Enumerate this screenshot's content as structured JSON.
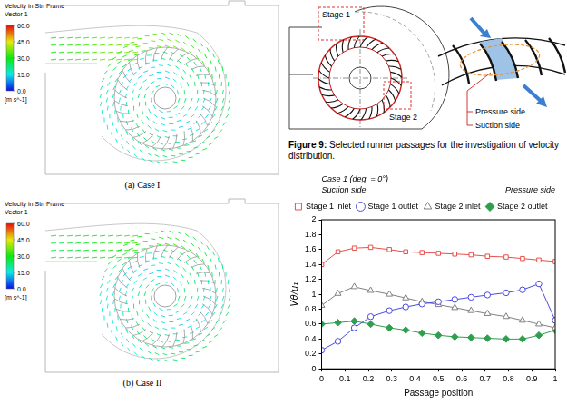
{
  "panels": [
    {
      "caption": "(a) Case I",
      "colorbar": {
        "title": "Velocity in Stn Frame",
        "subtitle": "Vector 1",
        "range": [
          0,
          60
        ],
        "ticks": [
          {
            "value": 0,
            "label": "0.0"
          },
          {
            "value": 15,
            "label": "15.0"
          },
          {
            "value": 30,
            "label": "30.0"
          },
          {
            "value": 45,
            "label": "45.0"
          },
          {
            "value": 60,
            "label": "60.0"
          }
        ],
        "unit": "[m s^-1]"
      }
    },
    {
      "caption": "(b) Case II",
      "colorbar": {
        "title": "Velocity in Stn Frame",
        "subtitle": "Vector 1",
        "range": [
          0,
          60
        ],
        "ticks": [
          {
            "value": 0,
            "label": "0.0"
          },
          {
            "value": 15,
            "label": "15.0"
          },
          {
            "value": 30,
            "label": "30.0"
          },
          {
            "value": 45,
            "label": "45.0"
          },
          {
            "value": 60,
            "label": "60.0"
          }
        ],
        "unit": "[m s^-1]"
      }
    }
  ],
  "figure": {
    "stage_labels": [
      "Stage 1",
      "Stage 2"
    ],
    "side_labels": [
      "Pressure side",
      "Suction side"
    ],
    "label": "Figure 9:",
    "caption": "Selected runner passages for the investigation of velocity distribution."
  },
  "chart_data": {
    "type": "line",
    "title": "Case 1 (deg. = 0°)",
    "annotations": [
      "Suction side",
      "Pressure side"
    ],
    "x_label": "Passage position",
    "y_label": "Vθ/u₁",
    "x": [
      0,
      0.07,
      0.14,
      0.21,
      0.29,
      0.36,
      0.43,
      0.5,
      0.57,
      0.64,
      0.71,
      0.79,
      0.86,
      0.93,
      1
    ],
    "xlim": [
      0,
      1
    ],
    "xticks": [
      0,
      0.1,
      0.2,
      0.3,
      0.4,
      0.5,
      0.6,
      0.7,
      0.8,
      0.9,
      1
    ],
    "ylim": [
      0,
      2
    ],
    "yticks": [
      0,
      0.2,
      0.4,
      0.6,
      0.8,
      1,
      1.2,
      1.4,
      1.6,
      1.8,
      2
    ],
    "grid": false,
    "legend": "top",
    "series": [
      {
        "name": "Stage 1 inlet",
        "color": "#e8504a",
        "marker": "square-open",
        "values": [
          1.4,
          1.57,
          1.62,
          1.63,
          1.6,
          1.57,
          1.56,
          1.55,
          1.54,
          1.53,
          1.51,
          1.5,
          1.48,
          1.46,
          1.44
        ]
      },
      {
        "name": "Stage 1 outlet",
        "color": "#4a4ae0",
        "marker": "circle-open",
        "values": [
          0.25,
          0.37,
          0.55,
          0.7,
          0.78,
          0.83,
          0.87,
          0.9,
          0.93,
          0.96,
          0.99,
          1.02,
          1.06,
          1.14,
          0.65
        ]
      },
      {
        "name": "Stage 2 inlet",
        "color": "#808080",
        "marker": "triangle-open",
        "values": [
          0.85,
          1.01,
          1.1,
          1.05,
          1.0,
          0.95,
          0.9,
          0.86,
          0.82,
          0.78,
          0.74,
          0.7,
          0.65,
          0.6,
          0.55
        ]
      },
      {
        "name": "Stage 2 outlet",
        "color": "#2e9e4f",
        "marker": "diamond",
        "values": [
          0.6,
          0.62,
          0.64,
          0.6,
          0.55,
          0.52,
          0.48,
          0.45,
          0.43,
          0.42,
          0.41,
          0.4,
          0.4,
          0.45,
          0.52
        ]
      }
    ]
  }
}
